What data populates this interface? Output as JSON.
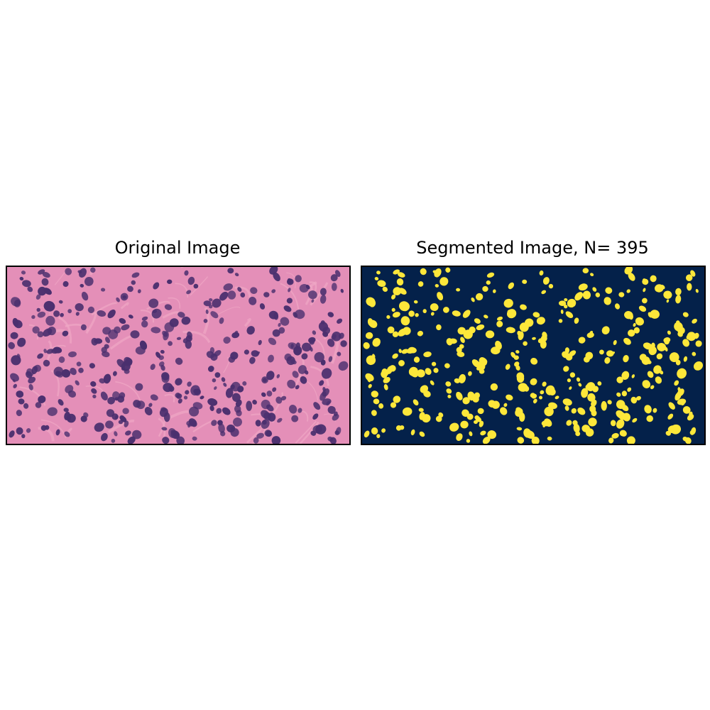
{
  "panels": {
    "original": {
      "title": "Original Image"
    },
    "segmented": {
      "title": "Segmented Image, N= 395",
      "nuclei_count": 395
    }
  },
  "colors": {
    "tissue_background": "#e48fb8",
    "stroma_pink": "#f0a6c4",
    "nucleus_purple": "#4a2f6e",
    "mask_background": "#04214a",
    "mask_foreground": "#fde73a"
  }
}
